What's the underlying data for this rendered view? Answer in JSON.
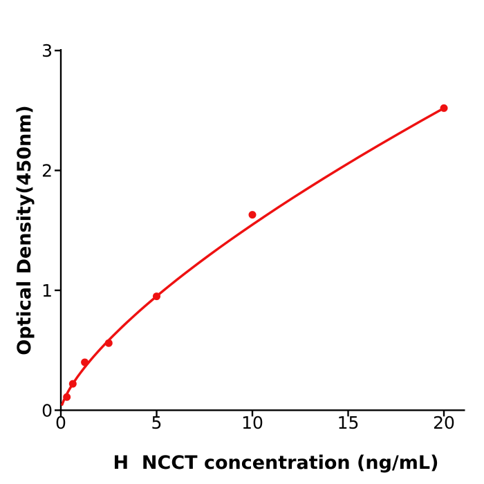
{
  "chart_data": {
    "type": "scatter",
    "subtype": "scatter-with-fit-curve",
    "title": "",
    "xlabel": "H  NCCT concentration (ng/mL)",
    "ylabel": "Optical Density(450nm)",
    "x_ticks": [
      0,
      5,
      10,
      15,
      20
    ],
    "y_ticks": [
      0,
      1,
      2,
      3
    ],
    "xlim": [
      0,
      21.1
    ],
    "ylim": [
      0,
      3
    ],
    "grid": false,
    "legend": null,
    "points": [
      {
        "x": 0.313,
        "y": 0.11
      },
      {
        "x": 0.625,
        "y": 0.22
      },
      {
        "x": 1.25,
        "y": 0.4
      },
      {
        "x": 2.5,
        "y": 0.56
      },
      {
        "x": 5,
        "y": 0.95
      },
      {
        "x": 10,
        "y": 1.63
      },
      {
        "x": 20,
        "y": 2.52
      }
    ],
    "fit_curve": {
      "model": "power",
      "equation": "OD = a * conc^b",
      "a": 0.3067,
      "b": 0.703,
      "x_start": 0.07,
      "x_end": 20
    },
    "colors": {
      "series": "#ee1111",
      "axis": "#000000",
      "background": "#ffffff"
    }
  }
}
